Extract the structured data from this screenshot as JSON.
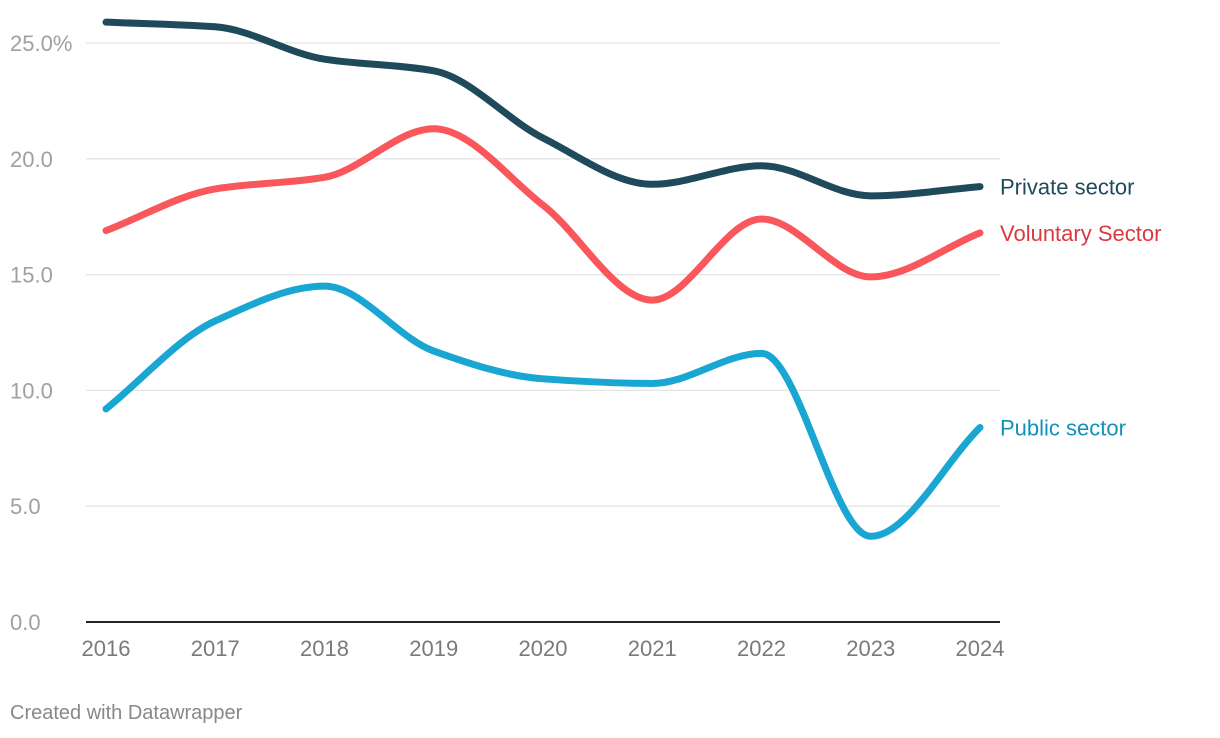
{
  "chart_data": {
    "type": "line",
    "title": "",
    "xlabel": "",
    "ylabel": "",
    "x": [
      "2016",
      "2017",
      "2018",
      "2019",
      "2020",
      "2021",
      "2022",
      "2023",
      "2024"
    ],
    "ylim": [
      0,
      25
    ],
    "yticks": [
      0,
      5,
      10,
      15,
      20,
      25
    ],
    "ytick_labels": [
      "0.0",
      "5.0",
      "10.0",
      "15.0",
      "20.0",
      "25.0%"
    ],
    "grid": true,
    "legend": "direct labels at line ends (right)",
    "series": [
      {
        "name": "Private sector",
        "color": "#1f4a5c",
        "label_color": "#1f4a5c",
        "values": [
          25.9,
          25.7,
          24.3,
          23.8,
          20.9,
          18.9,
          19.7,
          18.4,
          18.8
        ]
      },
      {
        "name": "Voluntary Sector",
        "color": "#f9575b",
        "label_color": "#d93a40",
        "values": [
          16.9,
          18.7,
          19.2,
          21.3,
          18.0,
          13.9,
          17.4,
          14.9,
          16.8
        ]
      },
      {
        "name": "Public sector",
        "color": "#1aa6d2",
        "label_color": "#1291b8",
        "values": [
          9.2,
          13.0,
          14.5,
          11.7,
          10.5,
          10.3,
          11.6,
          3.7,
          8.4
        ]
      }
    ]
  },
  "footer": {
    "credit": "Created with Datawrapper"
  }
}
